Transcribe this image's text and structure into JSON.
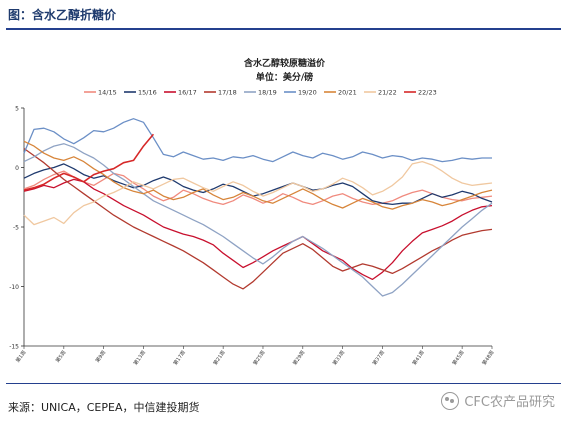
{
  "figure": {
    "title": "图：含水乙醇折糖价",
    "source": "来源：UNICA，CEPEA，中信建投期货",
    "watermark": "CFC农产品研究",
    "watermark_icon": "wechat-icon"
  },
  "chart_data": {
    "type": "line",
    "title": "含水乙醇较原糖溢价",
    "subtitle": "单位：美分/磅",
    "xlabel": "",
    "ylabel": "",
    "ylim": [
      -15,
      5
    ],
    "yticks": [
      5,
      0,
      -5,
      -10,
      -15
    ],
    "grid": false,
    "legend_position": "top",
    "x_count": 48,
    "x_ticks": [
      {
        "i": 0,
        "label": "第1周"
      },
      {
        "i": 4,
        "label": "第5周"
      },
      {
        "i": 8,
        "label": "第9周"
      },
      {
        "i": 12,
        "label": "第13周"
      },
      {
        "i": 16,
        "label": "第17周"
      },
      {
        "i": 20,
        "label": "第21周"
      },
      {
        "i": 24,
        "label": "第25周"
      },
      {
        "i": 28,
        "label": "第29周"
      },
      {
        "i": 32,
        "label": "第33周"
      },
      {
        "i": 36,
        "label": "第37周"
      },
      {
        "i": 40,
        "label": "第41周"
      },
      {
        "i": 44,
        "label": "第45周"
      },
      {
        "i": 47,
        "label": "第48周"
      }
    ],
    "series": [
      {
        "name": "14/15",
        "color": "#f08a7e",
        "values": [
          -1.8,
          -1.5,
          -1.0,
          -0.6,
          -0.3,
          -0.8,
          -1.2,
          -1.5,
          -1.0,
          -0.5,
          -0.7,
          -1.3,
          -1.8,
          -2.4,
          -2.8,
          -2.5,
          -1.9,
          -2.2,
          -2.6,
          -2.9,
          -3.1,
          -2.8,
          -2.3,
          -2.6,
          -3.0,
          -2.7,
          -2.2,
          -2.5,
          -2.9,
          -3.1,
          -2.8,
          -2.4,
          -2.2,
          -2.6,
          -2.9,
          -3.1,
          -3.0,
          -2.8,
          -2.4,
          -2.1,
          -1.9,
          -2.2,
          -2.5,
          -2.7,
          -2.8,
          -2.6,
          -2.5,
          -2.4
        ]
      },
      {
        "name": "15/16",
        "color": "#1f3a6e",
        "values": [
          -0.9,
          -0.5,
          -0.2,
          0.0,
          0.3,
          -0.1,
          -0.6,
          -0.9,
          -0.7,
          -1.1,
          -1.4,
          -1.7,
          -1.5,
          -1.1,
          -0.8,
          -1.1,
          -1.6,
          -1.9,
          -2.1,
          -1.8,
          -1.4,
          -1.6,
          -2.0,
          -2.4,
          -2.2,
          -1.9,
          -1.6,
          -1.3,
          -1.6,
          -1.9,
          -1.8,
          -1.5,
          -1.3,
          -1.6,
          -2.2,
          -2.8,
          -3.0,
          -3.1,
          -3.0,
          -3.0,
          -2.6,
          -2.2,
          -2.5,
          -2.3,
          -2.0,
          -2.2,
          -2.6,
          -2.9
        ]
      },
      {
        "name": "16/17",
        "color": "#c8102e",
        "values": [
          -2.0,
          -1.8,
          -1.5,
          -1.7,
          -1.3,
          -1.0,
          -1.2,
          -1.8,
          -2.2,
          -2.7,
          -3.2,
          -3.6,
          -4.0,
          -4.5,
          -5.0,
          -5.3,
          -5.6,
          -5.8,
          -6.1,
          -6.5,
          -7.2,
          -7.8,
          -8.4,
          -8.0,
          -7.5,
          -7.0,
          -6.6,
          -6.2,
          -5.8,
          -6.4,
          -7.0,
          -7.4,
          -7.8,
          -8.5,
          -9.0,
          -9.4,
          -8.8,
          -8.0,
          -7.0,
          -6.2,
          -5.5,
          -5.2,
          -4.9,
          -4.5,
          -4.0,
          -3.6,
          -3.3,
          -3.2
        ]
      },
      {
        "name": "17/18",
        "color": "#b23a2f",
        "values": [
          1.6,
          1.0,
          0.4,
          -0.3,
          -1.0,
          -1.6,
          -2.2,
          -2.8,
          -3.4,
          -4.0,
          -4.5,
          -5.0,
          -5.4,
          -5.8,
          -6.2,
          -6.6,
          -7.0,
          -7.5,
          -8.0,
          -8.6,
          -9.2,
          -9.8,
          -10.2,
          -9.6,
          -8.8,
          -8.0,
          -7.2,
          -6.8,
          -6.4,
          -6.9,
          -7.6,
          -8.3,
          -8.7,
          -8.4,
          -8.1,
          -8.3,
          -8.6,
          -8.9,
          -8.5,
          -8.0,
          -7.5,
          -7.0,
          -6.6,
          -6.1,
          -5.7,
          -5.5,
          -5.3,
          -5.2
        ]
      },
      {
        "name": "18/19",
        "color": "#8fa3c4",
        "values": [
          0.5,
          0.9,
          1.4,
          1.8,
          2.0,
          1.7,
          1.2,
          0.8,
          0.2,
          -0.5,
          -1.0,
          -1.6,
          -2.2,
          -2.8,
          -3.2,
          -3.6,
          -4.0,
          -4.4,
          -4.8,
          -5.3,
          -5.8,
          -6.4,
          -7.0,
          -7.6,
          -8.1,
          -7.5,
          -6.8,
          -6.2,
          -5.8,
          -6.3,
          -6.8,
          -7.4,
          -8.0,
          -8.6,
          -9.2,
          -10.0,
          -10.8,
          -10.5,
          -9.8,
          -9.0,
          -8.2,
          -7.4,
          -6.6,
          -5.8,
          -5.0,
          -4.3,
          -3.6,
          -3.0
        ]
      },
      {
        "name": "19/20",
        "color": "#6b8fc6",
        "values": [
          1.2,
          3.2,
          3.3,
          3.0,
          2.4,
          2.0,
          2.5,
          3.1,
          3.0,
          3.3,
          3.8,
          4.1,
          3.8,
          2.5,
          1.1,
          0.9,
          1.3,
          1.0,
          0.7,
          0.8,
          0.6,
          0.9,
          0.8,
          1.0,
          0.7,
          0.5,
          0.9,
          1.3,
          1.0,
          0.8,
          1.2,
          1.0,
          0.7,
          0.9,
          1.3,
          1.1,
          0.8,
          1.0,
          0.9,
          0.6,
          0.8,
          0.7,
          0.5,
          0.6,
          0.8,
          0.7,
          0.8,
          0.8
        ]
      },
      {
        "name": "20/21",
        "color": "#d7853a",
        "values": [
          2.2,
          1.8,
          1.2,
          0.8,
          0.6,
          0.9,
          0.5,
          -0.1,
          -0.6,
          -1.2,
          -1.7,
          -2.0,
          -2.2,
          -1.9,
          -2.4,
          -2.7,
          -2.5,
          -2.1,
          -1.8,
          -2.3,
          -2.7,
          -2.5,
          -2.1,
          -2.4,
          -2.8,
          -3.0,
          -2.6,
          -2.2,
          -1.8,
          -2.2,
          -2.7,
          -3.1,
          -3.4,
          -3.0,
          -2.6,
          -2.9,
          -3.3,
          -3.5,
          -3.2,
          -3.0,
          -2.7,
          -2.9,
          -3.2,
          -3.0,
          -2.7,
          -2.4,
          -2.1,
          -1.9
        ]
      },
      {
        "name": "21/22",
        "color": "#f0c8a0",
        "values": [
          -4.0,
          -4.8,
          -4.5,
          -4.2,
          -4.7,
          -3.8,
          -3.2,
          -2.9,
          -2.4,
          -2.1,
          -1.7,
          -1.2,
          -1.5,
          -1.8,
          -1.4,
          -1.0,
          -0.9,
          -1.3,
          -1.7,
          -2.0,
          -1.6,
          -1.2,
          -1.5,
          -2.0,
          -2.4,
          -2.1,
          -1.7,
          -1.3,
          -1.6,
          -2.0,
          -1.8,
          -1.4,
          -0.9,
          -1.2,
          -1.7,
          -2.3,
          -2.0,
          -1.5,
          -0.8,
          0.3,
          0.5,
          0.2,
          -0.3,
          -0.9,
          -1.3,
          -1.5,
          -1.4,
          -1.3
        ]
      },
      {
        "name": "22/23",
        "color": "#d62828",
        "values": [
          -1.9,
          -1.7,
          -1.4,
          -0.9,
          -0.5,
          -0.8,
          -1.2,
          -0.6,
          -0.3,
          -0.1,
          0.4,
          0.6,
          1.8,
          2.8,
          null,
          null,
          null,
          null,
          null,
          null,
          null,
          null,
          null,
          null,
          null,
          null,
          null,
          null,
          null,
          null,
          null,
          null,
          null,
          null,
          null,
          null,
          null,
          null,
          null,
          null,
          null,
          null,
          null,
          null,
          null,
          null,
          null,
          null
        ]
      }
    ]
  }
}
